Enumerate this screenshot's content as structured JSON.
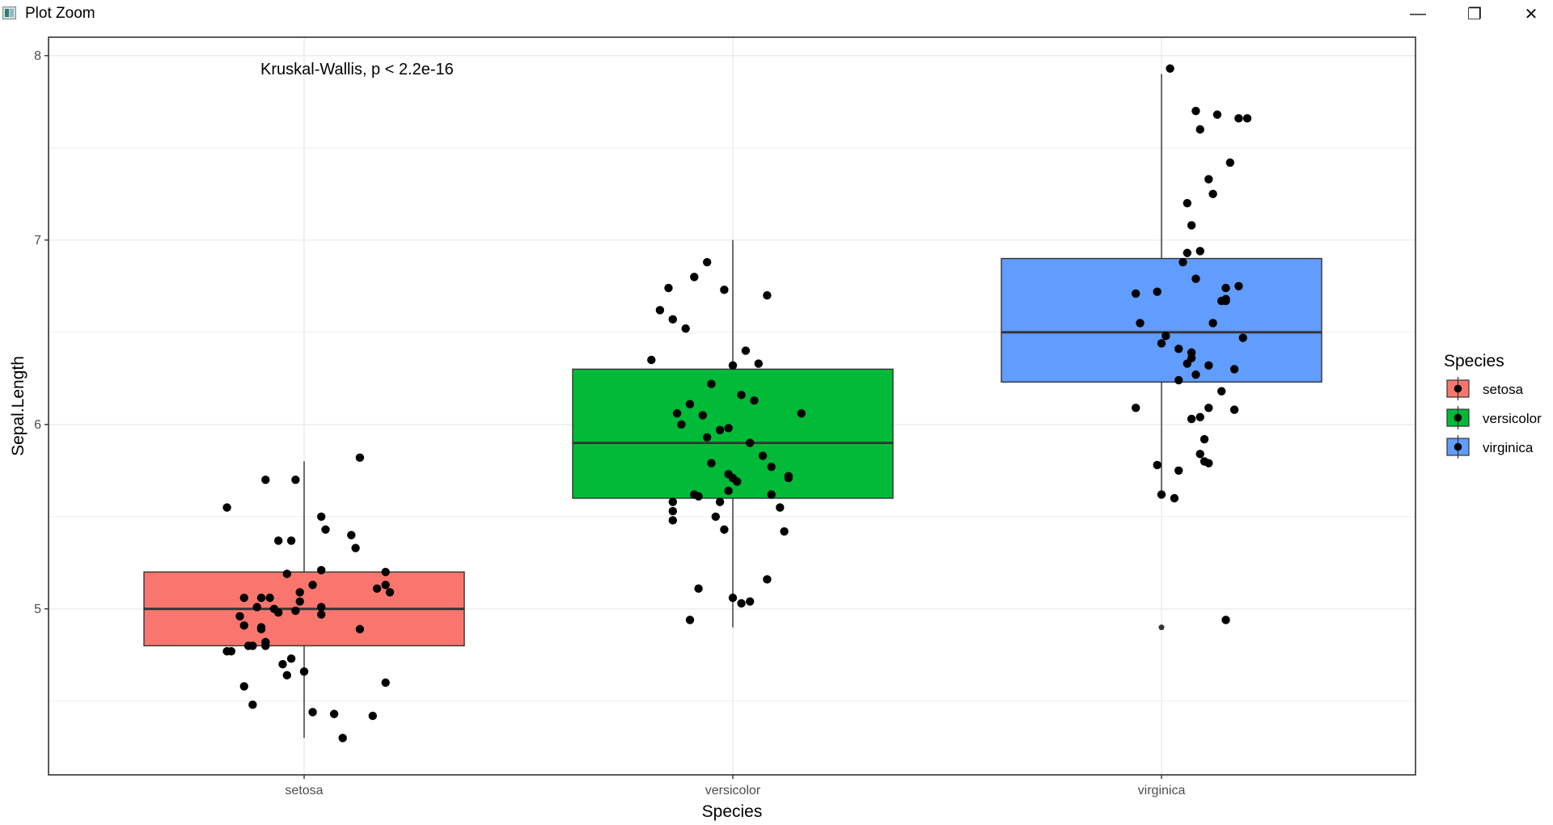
{
  "window": {
    "title": "Plot Zoom",
    "minimize_glyph": "—",
    "restore_glyph": "❐",
    "close_glyph": "✕"
  },
  "colors": {
    "setosa": "#F8766D",
    "versicolor": "#00BA38",
    "virginica": "#619CFF",
    "grid": "#ebebeb",
    "axis_text": "#4d4d4d"
  },
  "chart_data": {
    "type": "box",
    "title": "",
    "xlabel": "Species",
    "ylabel": "Sepal.Length",
    "ylim": [
      4.1,
      8.1
    ],
    "yticks": [
      5,
      6,
      7,
      8
    ],
    "grid": true,
    "annotation": "Kruskal-Wallis, p < 2.2e-16",
    "categories": [
      "setosa",
      "versicolor",
      "virginica"
    ],
    "legend": {
      "title": "Species",
      "position": "right",
      "entries": [
        "setosa",
        "versicolor",
        "virginica"
      ]
    },
    "boxes": [
      {
        "name": "setosa",
        "min": 4.3,
        "q1": 4.8,
        "median": 5.0,
        "q3": 5.2,
        "max": 5.8,
        "outliers": []
      },
      {
        "name": "versicolor",
        "min": 4.9,
        "q1": 5.6,
        "median": 5.9,
        "q3": 6.3,
        "max": 7.0,
        "outliers": []
      },
      {
        "name": "virginica",
        "min": 5.6,
        "q1": 6.23,
        "median": 6.5,
        "q3": 6.9,
        "max": 7.9,
        "outliers": [
          4.9
        ]
      }
    ],
    "points": [
      {
        "series": "setosa",
        "x": [
          0.82,
          0.91,
          0.98,
          0.94,
          1.04,
          1.05,
          1.13,
          0.97,
          0.96,
          1.12,
          1.04,
          0.89,
          0.99,
          1.11,
          0.9,
          0.99,
          1.02,
          0.94,
          0.83,
          0.88,
          0.86,
          1.16,
          0.88,
          1.2,
          1.19,
          0.82,
          0.86,
          0.87,
          1.02,
          1.07,
          1.19,
          0.92,
          1.04,
          0.9,
          1.19,
          0.96,
          0.95,
          1.09,
          1.04,
          0.91,
          1.0,
          0.9,
          0.85,
          0.91,
          0.97,
          0.86,
          1.13,
          0.93,
          0.98,
          1.17
        ],
        "y": [
          5.55,
          5.7,
          5.7,
          5.37,
          5.5,
          5.43,
          5.82,
          5.37,
          5.19,
          5.33,
          5.21,
          5.01,
          5.04,
          5.4,
          5.06,
          5.09,
          5.13,
          4.98,
          4.77,
          4.8,
          4.58,
          4.42,
          4.48,
          5.09,
          5.13,
          4.77,
          4.91,
          4.8,
          4.44,
          4.43,
          5.2,
          5.06,
          4.97,
          4.89,
          4.6,
          4.64,
          4.7,
          4.3,
          5.01,
          4.82,
          4.66,
          4.9,
          4.96,
          4.8,
          4.73,
          5.06,
          4.89,
          5.0,
          4.99,
          5.11
        ]
      },
      {
        "series": "versicolor",
        "x": [
          0.85,
          0.83,
          0.91,
          0.94,
          0.98,
          1.03,
          1.06,
          0.89,
          0.81,
          1.0,
          1.08,
          0.86,
          0.95,
          0.9,
          0.87,
          0.93,
          0.99,
          0.88,
          0.94,
          0.97,
          1.04,
          1.16,
          1.05,
          1.02,
          1.07,
          0.95,
          1.09,
          1.13,
          1.13,
          0.99,
          1.01,
          1.0,
          1.09,
          0.91,
          0.97,
          0.86,
          0.86,
          1.11,
          0.96,
          0.86,
          0.98,
          1.12,
          1.08,
          1.0,
          0.92,
          1.04,
          1.02,
          0.9,
          0.92,
          0.99
        ],
        "y": [
          6.74,
          6.62,
          6.8,
          6.88,
          6.73,
          6.4,
          6.33,
          6.52,
          6.35,
          6.32,
          6.7,
          6.57,
          6.22,
          6.11,
          6.06,
          6.05,
          5.98,
          6.0,
          5.93,
          5.97,
          5.9,
          6.06,
          6.13,
          6.16,
          5.83,
          5.79,
          5.77,
          5.71,
          5.72,
          5.73,
          5.69,
          5.71,
          5.62,
          5.62,
          5.58,
          5.58,
          5.53,
          5.55,
          5.5,
          5.48,
          5.43,
          5.42,
          5.16,
          5.06,
          5.11,
          5.04,
          5.03,
          4.94,
          5.61,
          5.64
        ]
      },
      {
        "series": "virginica",
        "x": [
          1.02,
          1.08,
          1.16,
          1.13,
          1.18,
          1.2,
          1.09,
          1.11,
          1.12,
          1.06,
          1.07,
          1.06,
          1.09,
          1.05,
          1.08,
          1.18,
          1.15,
          1.14,
          1.15,
          0.94,
          0.99,
          1.15,
          0.95,
          1.12,
          1.19,
          1.0,
          1.01,
          1.11,
          1.04,
          1.07,
          1.07,
          1.17,
          1.06,
          1.04,
          1.08,
          1.14,
          1.11,
          1.09,
          1.07,
          1.17,
          0.94,
          1.1,
          1.09,
          1.1,
          1.04,
          0.99,
          1.0,
          1.03,
          1.11,
          1.15
        ],
        "y": [
          7.93,
          7.7,
          7.42,
          7.68,
          7.66,
          7.66,
          7.6,
          7.33,
          7.25,
          7.2,
          7.08,
          6.93,
          6.94,
          6.88,
          6.79,
          6.75,
          6.74,
          6.67,
          6.67,
          6.71,
          6.72,
          6.68,
          6.55,
          6.55,
          6.47,
          6.44,
          6.48,
          6.32,
          6.41,
          6.39,
          6.36,
          6.3,
          6.33,
          6.24,
          6.27,
          6.18,
          6.09,
          6.04,
          6.03,
          6.08,
          6.09,
          5.92,
          5.84,
          5.8,
          5.75,
          5.78,
          5.62,
          5.6,
          5.79,
          4.94
        ]
      }
    ]
  }
}
